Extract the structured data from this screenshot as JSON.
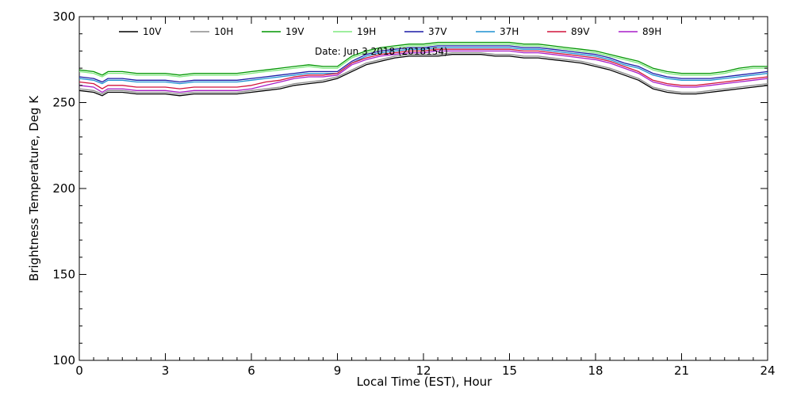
{
  "chart_data": {
    "type": "line",
    "title": "",
    "subtitle": "Date: Jun  3 2018 (2018154)",
    "xlabel": "Local Time (EST), Hour",
    "ylabel": "Brightness Temperature, Deg K",
    "xlim": [
      0,
      24
    ],
    "ylim": [
      100,
      300
    ],
    "xticks": [
      0,
      3,
      6,
      9,
      12,
      15,
      18,
      21,
      24
    ],
    "yticks": [
      100,
      150,
      200,
      250,
      300
    ],
    "grid": false,
    "legend": "top",
    "x": [
      0,
      0.5,
      0.8,
      1,
      1.5,
      2,
      2.5,
      3,
      3.5,
      4,
      4.5,
      5,
      5.5,
      6,
      6.5,
      7,
      7.5,
      8,
      8.5,
      9,
      9.5,
      10,
      10.5,
      11,
      11.5,
      12,
      12.5,
      13,
      13.5,
      14,
      14.5,
      15,
      15.5,
      16,
      16.5,
      17,
      17.5,
      18,
      18.5,
      19,
      19.5,
      20,
      20.5,
      21,
      21.5,
      22,
      22.5,
      23,
      23.5,
      24
    ],
    "series": [
      {
        "name": "10V",
        "color": "#000000",
        "values": [
          257,
          256,
          254,
          256,
          256,
          255,
          255,
          255,
          254,
          255,
          255,
          255,
          255,
          256,
          257,
          258,
          260,
          261,
          262,
          264,
          268,
          272,
          274,
          276,
          277,
          277,
          277,
          278,
          278,
          278,
          277,
          277,
          276,
          276,
          275,
          274,
          273,
          271,
          269,
          266,
          263,
          258,
          256,
          255,
          255,
          256,
          257,
          258,
          259,
          260
        ]
      },
      {
        "name": "10H",
        "color": "#8c8c8c",
        "values": [
          258,
          257,
          255,
          257,
          257,
          256,
          256,
          256,
          255,
          256,
          256,
          256,
          256,
          257,
          258,
          259,
          261,
          262,
          263,
          265,
          269,
          273,
          275,
          277,
          278,
          278,
          278,
          279,
          279,
          279,
          278,
          278,
          277,
          277,
          276,
          275,
          274,
          272,
          270,
          267,
          264,
          259,
          257,
          256,
          256,
          257,
          258,
          259,
          260,
          261
        ]
      },
      {
        "name": "19V",
        "color": "#009600",
        "values": [
          269,
          268,
          266,
          268,
          268,
          267,
          267,
          267,
          266,
          267,
          267,
          267,
          267,
          268,
          269,
          270,
          271,
          272,
          271,
          271,
          277,
          280,
          282,
          283,
          284,
          284,
          285,
          285,
          285,
          285,
          285,
          285,
          284,
          284,
          283,
          282,
          281,
          280,
          278,
          276,
          274,
          270,
          268,
          267,
          267,
          267,
          268,
          270,
          271,
          271
        ]
      },
      {
        "name": "19H",
        "color": "#7ee87e",
        "values": [
          268,
          267,
          265,
          267,
          267,
          266,
          266,
          266,
          265,
          266,
          266,
          266,
          266,
          267,
          268,
          269,
          270,
          271,
          270,
          270,
          276,
          279,
          281,
          282,
          283,
          283,
          284,
          284,
          284,
          284,
          284,
          284,
          283,
          283,
          282,
          281,
          280,
          279,
          277,
          275,
          273,
          269,
          267,
          266,
          266,
          266,
          267,
          269,
          270,
          270
        ]
      },
      {
        "name": "37V",
        "color": "#1a1aa6",
        "values": [
          265,
          264,
          262,
          264,
          264,
          263,
          263,
          263,
          262,
          263,
          263,
          263,
          263,
          264,
          265,
          266,
          267,
          268,
          268,
          268,
          274,
          278,
          280,
          281,
          282,
          282,
          283,
          283,
          283,
          283,
          283,
          283,
          282,
          282,
          281,
          280,
          279,
          278,
          276,
          273,
          271,
          267,
          265,
          264,
          264,
          264,
          265,
          266,
          267,
          268
        ]
      },
      {
        "name": "37H",
        "color": "#1e90d2",
        "values": [
          264,
          263,
          261,
          263,
          263,
          262,
          262,
          262,
          261,
          262,
          262,
          262,
          262,
          263,
          264,
          265,
          266,
          267,
          267,
          267,
          273,
          277,
          279,
          280,
          281,
          281,
          282,
          282,
          282,
          282,
          282,
          282,
          281,
          281,
          280,
          279,
          278,
          277,
          275,
          272,
          270,
          266,
          264,
          263,
          263,
          263,
          264,
          265,
          266,
          267
        ]
      },
      {
        "name": "89V",
        "color": "#d2143c",
        "values": [
          262,
          261,
          258,
          260,
          260,
          259,
          259,
          259,
          258,
          259,
          259,
          259,
          259,
          260,
          262,
          263,
          265,
          266,
          266,
          267,
          273,
          276,
          278,
          279,
          280,
          280,
          281,
          281,
          281,
          281,
          281,
          281,
          280,
          280,
          279,
          278,
          277,
          276,
          274,
          271,
          268,
          263,
          261,
          260,
          260,
          261,
          262,
          263,
          264,
          265
        ]
      },
      {
        "name": "89H",
        "color": "#a81ec8",
        "values": [
          260,
          259,
          256,
          258,
          258,
          257,
          257,
          257,
          256,
          257,
          257,
          257,
          257,
          258,
          260,
          262,
          264,
          265,
          265,
          266,
          272,
          275,
          277,
          278,
          279,
          279,
          280,
          280,
          280,
          280,
          280,
          280,
          279,
          279,
          278,
          277,
          276,
          275,
          273,
          270,
          267,
          262,
          260,
          259,
          259,
          260,
          261,
          262,
          263,
          264
        ]
      }
    ]
  }
}
